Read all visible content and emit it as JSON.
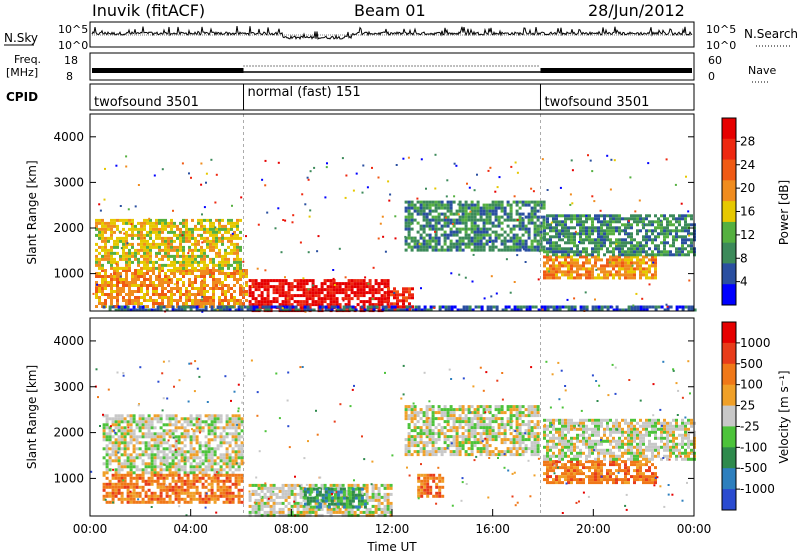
{
  "header": {
    "station": "Inuvik (fitACF)",
    "beam": "Beam 01",
    "date": "28/Jun/2012"
  },
  "strip_labels": {
    "nsky": "N.Sky",
    "nsearch": "N.Search",
    "freq_line1": "Freq.",
    "freq_line2": "[MHz]",
    "nave": "Nave",
    "cpid": "CPID"
  },
  "cpid_segments": [
    {
      "label": "twofsound 3501",
      "start": 0,
      "end": 6.1
    },
    {
      "label": "normal (fast) 151",
      "start": 6.1,
      "end": 17.9
    },
    {
      "label": "twofsound 3501",
      "start": 17.9,
      "end": 24
    }
  ],
  "colors": {
    "power": [
      "#0000ff",
      "#2a4fa0",
      "#3c8a5a",
      "#55b040",
      "#e6c800",
      "#f08c1e",
      "#f05a14",
      "#ee2810",
      "#e60000"
    ],
    "velocity": [
      "#2a4bd0",
      "#2d7fbe",
      "#2e8a4c",
      "#4cc33a",
      "#c8c8c8",
      "#f0a028",
      "#f07818",
      "#e83c1a",
      "#e60000"
    ]
  },
  "chart_data": [
    {
      "type": "line",
      "name": "nsky-nsearch",
      "y_ticks_left": [
        "10^5",
        "10^0"
      ],
      "y_ticks_right": [
        "10^5",
        "10^0"
      ]
    },
    {
      "type": "line",
      "name": "freq-nave",
      "y_ticks_left": [
        "18",
        "8"
      ],
      "y_ticks_right": [
        "60",
        "0"
      ]
    },
    {
      "type": "heatmap",
      "name": "power",
      "xlabel": "",
      "ylabel": "Slant Range [km]",
      "colorbar_label": "Power [dB]",
      "colorbar_ticks": [
        "28",
        "24",
        "20",
        "16",
        "12",
        "8",
        "4"
      ],
      "ylim": [
        180,
        4500
      ],
      "y_ticks": [
        1000,
        2000,
        3000,
        4000
      ],
      "xlim": [
        0,
        24
      ],
      "regions": [
        {
          "x0": 0.2,
          "x1": 6.2,
          "y0": 300,
          "y1": 1100,
          "level": 5
        },
        {
          "x0": 0.2,
          "x1": 6.0,
          "y0": 1100,
          "y1": 2200,
          "level": 4
        },
        {
          "x0": 6.3,
          "x1": 11.8,
          "y0": 180,
          "y1": 880,
          "level": 8
        },
        {
          "x0": 11.8,
          "x1": 12.8,
          "y0": 180,
          "y1": 700,
          "level": 7
        },
        {
          "x0": 12.5,
          "x1": 18.0,
          "y0": 1500,
          "y1": 2600,
          "level": 2
        },
        {
          "x0": 18.0,
          "x1": 22.5,
          "y0": 900,
          "y1": 1400,
          "level": 5
        },
        {
          "x0": 18.0,
          "x1": 24.0,
          "y0": 1400,
          "y1": 2300,
          "level": 2
        },
        {
          "x0": 0.5,
          "x1": 24.0,
          "y0": 180,
          "y1": 300,
          "level": 1
        }
      ]
    },
    {
      "type": "heatmap",
      "name": "velocity",
      "xlabel": "Time UT",
      "ylabel": "Slant Range [km]",
      "colorbar_label": "Velocity [m s⁻¹]",
      "colorbar_ticks": [
        "1000",
        "500",
        "100",
        "25",
        "-25",
        "-100",
        "-500",
        "-1000"
      ],
      "ylim": [
        180,
        4500
      ],
      "y_ticks": [
        1000,
        2000,
        3000,
        4000
      ],
      "xlim": [
        0,
        24
      ],
      "x_ticks": [
        "00:00",
        "04:00",
        "08:00",
        "12:00",
        "16:00",
        "20:00",
        "00:00"
      ],
      "regions": [
        {
          "x0": 0.5,
          "x1": 6.0,
          "y0": 1100,
          "y1": 2400,
          "level": 4
        },
        {
          "x0": 0.5,
          "x1": 6.0,
          "y0": 500,
          "y1": 1100,
          "level": 6
        },
        {
          "x0": 6.3,
          "x1": 12.0,
          "y0": 180,
          "y1": 880,
          "level": 4
        },
        {
          "x0": 8.5,
          "x1": 11.0,
          "y0": 350,
          "y1": 800,
          "level": 2
        },
        {
          "x0": 12.5,
          "x1": 17.8,
          "y0": 1500,
          "y1": 2600,
          "level": 4
        },
        {
          "x0": 13.0,
          "x1": 14.0,
          "y0": 600,
          "y1": 1100,
          "level": 6
        },
        {
          "x0": 18.0,
          "x1": 22.5,
          "y0": 900,
          "y1": 1400,
          "level": 6
        },
        {
          "x0": 18.0,
          "x1": 24.0,
          "y0": 1400,
          "y1": 2300,
          "level": 4
        }
      ]
    }
  ]
}
